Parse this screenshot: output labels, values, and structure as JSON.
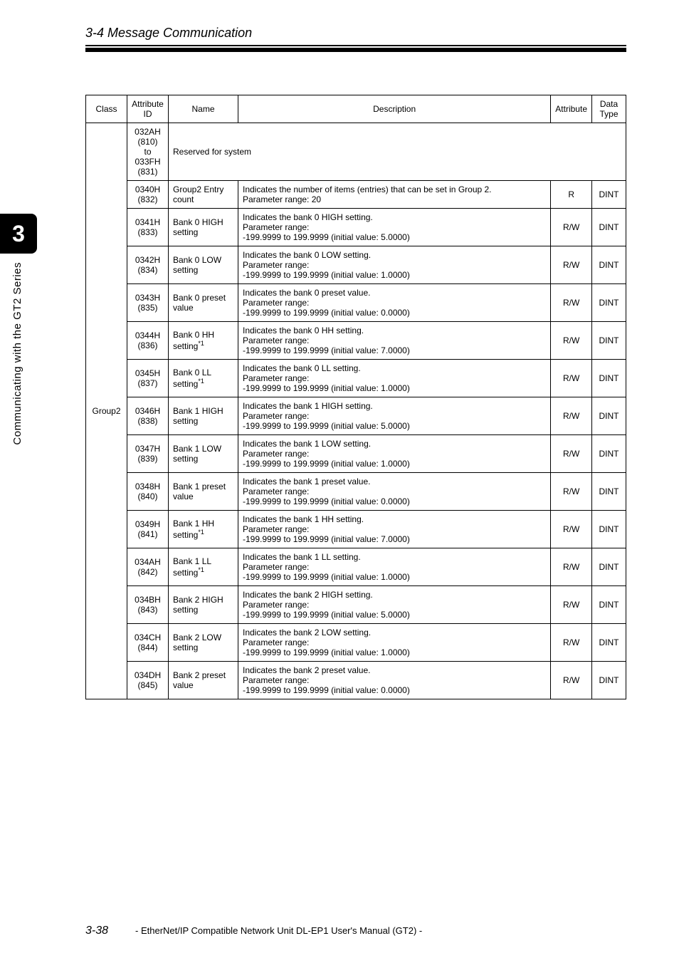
{
  "section_title": "3-4 Message Communication",
  "side_tab": "3",
  "side_label": "Communicating with the GT2 Series",
  "table": {
    "headers": {
      "class": "Class",
      "attribute_id": "Attribute ID",
      "name": "Name",
      "description": "Description",
      "attribute": "Attribute",
      "data_type": "Data Type"
    },
    "class_value": "Group2",
    "reserved": {
      "attr_id": "032AH (810) to 033FH (831)",
      "text": "Reserved for system"
    },
    "rows": [
      {
        "attr_id": "0340H (832)",
        "name": "Group2 Entry count",
        "desc": "Indicates the number of items (entries) that can be set in Group 2.\nParameter range: 20",
        "attr": "R",
        "type": "DINT"
      },
      {
        "attr_id": "0341H (833)",
        "name": "Bank 0 HIGH setting",
        "desc": "Indicates the bank 0 HIGH setting.\nParameter range:\n-199.9999 to 199.9999 (initial value: 5.0000)",
        "attr": "R/W",
        "type": "DINT"
      },
      {
        "attr_id": "0342H (834)",
        "name": "Bank 0 LOW setting",
        "desc": "Indicates the bank 0 LOW setting.\nParameter range:\n-199.9999 to 199.9999 (initial value: 1.0000)",
        "attr": "R/W",
        "type": "DINT"
      },
      {
        "attr_id": "0343H (835)",
        "name": "Bank 0 preset value",
        "desc": "Indicates the bank 0 preset value.\nParameter range:\n-199.9999 to 199.9999 (initial value: 0.0000)",
        "attr": "R/W",
        "type": "DINT"
      },
      {
        "attr_id": "0344H (836)",
        "name": "Bank 0 HH setting",
        "sup": "*1",
        "desc": "Indicates the bank 0 HH setting.\nParameter range:\n-199.9999 to 199.9999 (initial value: 7.0000)",
        "attr": "R/W",
        "type": "DINT"
      },
      {
        "attr_id": "0345H (837)",
        "name": "Bank 0 LL setting",
        "sup": "*1",
        "desc": "Indicates the bank 0 LL setting.\nParameter range:\n-199.9999 to 199.9999 (initial value: 1.0000)",
        "attr": "R/W",
        "type": "DINT"
      },
      {
        "attr_id": "0346H (838)",
        "name": "Bank 1 HIGH setting",
        "desc": "Indicates the bank 1 HIGH setting.\nParameter range:\n-199.9999 to 199.9999 (initial value: 5.0000)",
        "attr": "R/W",
        "type": "DINT"
      },
      {
        "attr_id": "0347H (839)",
        "name": "Bank 1 LOW setting",
        "desc": "Indicates the bank 1 LOW setting.\nParameter range:\n-199.9999 to 199.9999 (initial value: 1.0000)",
        "attr": "R/W",
        "type": "DINT"
      },
      {
        "attr_id": "0348H (840)",
        "name": "Bank 1 preset value",
        "desc": "Indicates the bank 1 preset value.\nParameter range:\n-199.9999 to 199.9999 (initial value: 0.0000)",
        "attr": "R/W",
        "type": "DINT"
      },
      {
        "attr_id": "0349H (841)",
        "name": "Bank 1 HH setting",
        "sup": "*1",
        "desc": "Indicates the bank 1 HH setting.\nParameter range:\n-199.9999 to 199.9999 (initial value: 7.0000)",
        "attr": "R/W",
        "type": "DINT"
      },
      {
        "attr_id": "034AH (842)",
        "name": "Bank 1 LL setting",
        "sup": "*1",
        "desc": "Indicates the bank 1 LL setting.\nParameter range:\n-199.9999 to 199.9999 (initial value: 1.0000)",
        "attr": "R/W",
        "type": "DINT"
      },
      {
        "attr_id": "034BH (843)",
        "name": "Bank 2 HIGH setting",
        "desc": "Indicates the bank 2 HIGH setting.\nParameter range:\n-199.9999 to 199.9999 (initial value: 5.0000)",
        "attr": "R/W",
        "type": "DINT"
      },
      {
        "attr_id": "034CH (844)",
        "name": "Bank 2 LOW setting",
        "desc": "Indicates the bank 2 LOW setting.\nParameter range:\n-199.9999 to 199.9999 (initial value: 1.0000)",
        "attr": "R/W",
        "type": "DINT"
      },
      {
        "attr_id": "034DH (845)",
        "name": "Bank 2 preset value",
        "desc": "Indicates the bank 2 preset value.\nParameter range:\n-199.9999 to 199.9999 (initial value: 0.0000)",
        "attr": "R/W",
        "type": "DINT"
      }
    ]
  },
  "footer": {
    "page": "3-38",
    "manual": "- EtherNet/IP Compatible Network Unit DL-EP1 User's Manual (GT2) -"
  }
}
